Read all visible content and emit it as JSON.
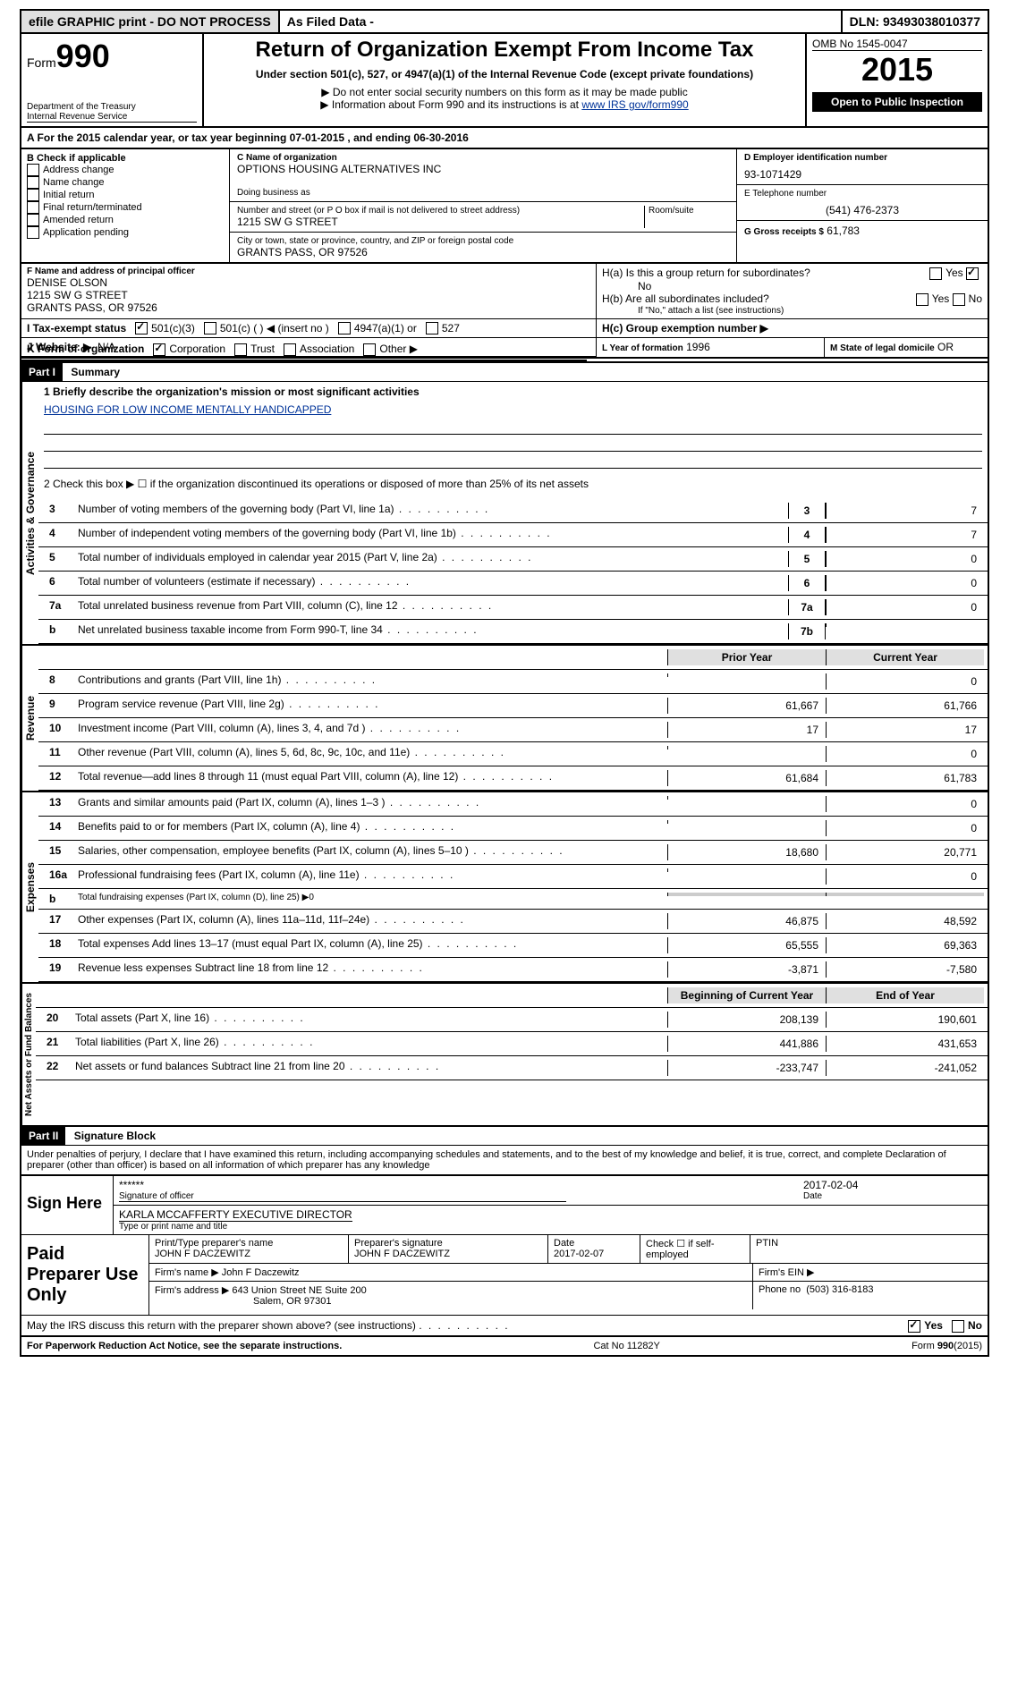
{
  "topbar": {
    "efile": "efile GRAPHIC print - DO NOT PROCESS",
    "asfiled": "As Filed Data -",
    "dln_label": "DLN:",
    "dln": "93493038010377"
  },
  "header": {
    "form_prefix": "Form",
    "form_num": "990",
    "dept": "Department of the Treasury",
    "irs": "Internal Revenue Service",
    "title": "Return of Organization Exempt From Income Tax",
    "subtitle": "Under section 501(c), 527, or 4947(a)(1) of the Internal Revenue Code (except private foundations)",
    "note1": "▶ Do not enter social security numbers on this form as it may be made public",
    "note2_prefix": "▶ Information about Form 990 and its instructions is at ",
    "note2_link": "www IRS gov/form990",
    "omb": "OMB No 1545-0047",
    "year": "2015",
    "open": "Open to Public Inspection"
  },
  "sectionA": {
    "text_a": "A  For the 2015 calendar year, or tax year beginning ",
    "begin": "07-01-2015",
    "mid": " , and ending ",
    "end": "06-30-2016"
  },
  "sectionB": {
    "label": "B  Check if applicable",
    "items": [
      "Address change",
      "Name change",
      "Initial return",
      "Final return/terminated",
      "Amended return",
      "Application pending"
    ]
  },
  "sectionC": {
    "label_name": "C Name of organization",
    "org_name": "OPTIONS HOUSING ALTERNATIVES INC",
    "dba_label": "Doing business as",
    "dba": "",
    "addr_label": "Number and street (or P O box if mail is not delivered to street address)",
    "room_label": "Room/suite",
    "addr": "1215 SW G STREET",
    "city_label": "City or town, state or province, country, and ZIP or foreign postal code",
    "city": "GRANTS PASS, OR  97526"
  },
  "sectionD": {
    "label": "D Employer identification number",
    "value": "93-1071429"
  },
  "sectionE": {
    "label": "E Telephone number",
    "value": "(541) 476-2373"
  },
  "sectionG": {
    "label": "G Gross receipts $",
    "value": "61,783"
  },
  "sectionF": {
    "label": "F  Name and address of principal officer",
    "name": "DENISE OLSON",
    "addr": "1215 SW G STREET",
    "city": "GRANTS PASS, OR  97526"
  },
  "sectionH": {
    "ha_label": "H(a)  Is this a group return for subordinates?",
    "ha_no": "No",
    "hb_label": "H(b)  Are all subordinates included?",
    "hb_note": "If \"No,\" attach a list  (see instructions)",
    "hc_label": "H(c)  Group exemption number ▶"
  },
  "sectionI": {
    "label": "I  Tax-exempt status",
    "opt1": "501(c)(3)",
    "opt2": "501(c) (  ) ◀ (insert no )",
    "opt3": "4947(a)(1) or",
    "opt4": "527"
  },
  "sectionJ": {
    "label": "J  Website: ▶",
    "value": "N/A"
  },
  "sectionK": {
    "label": "K Form of organization",
    "opts": [
      "Corporation",
      "Trust",
      "Association",
      "Other ▶"
    ]
  },
  "sectionL": {
    "label": "L Year of formation",
    "value": "1996"
  },
  "sectionM": {
    "label": "M State of legal domicile",
    "value": "OR"
  },
  "partI": {
    "tag": "Part I",
    "title": "Summary",
    "line1_label": "1 Briefly describe the organization's mission or most significant activities",
    "mission": "HOUSING FOR LOW INCOME MENTALLY HANDICAPPED",
    "line2": "2  Check this box ▶ ☐ if the organization discontinued its operations or disposed of more than 25% of its net assets",
    "vlabel_gov": "Activities & Governance",
    "vlabel_rev": "Revenue",
    "vlabel_exp": "Expenses",
    "vlabel_net": "Net Assets or Fund Balances",
    "prior_header": "Prior Year",
    "current_header": "Current Year",
    "begin_header": "Beginning of Current Year",
    "end_header": "End of Year",
    "lines_gov": [
      {
        "n": "3",
        "t": "Number of voting members of the governing body (Part VI, line 1a)",
        "box": "3",
        "v": "7"
      },
      {
        "n": "4",
        "t": "Number of independent voting members of the governing body (Part VI, line 1b)",
        "box": "4",
        "v": "7"
      },
      {
        "n": "5",
        "t": "Total number of individuals employed in calendar year 2015 (Part V, line 2a)",
        "box": "5",
        "v": "0"
      },
      {
        "n": "6",
        "t": "Total number of volunteers (estimate if necessary)",
        "box": "6",
        "v": "0"
      },
      {
        "n": "7a",
        "t": "Total unrelated business revenue from Part VIII, column (C), line 12",
        "box": "7a",
        "v": "0"
      },
      {
        "n": "b",
        "t": "Net unrelated business taxable income from Form 990-T, line 34",
        "box": "7b",
        "v": ""
      }
    ],
    "lines_rev": [
      {
        "n": "8",
        "t": "Contributions and grants (Part VIII, line 1h)",
        "p": "",
        "c": "0"
      },
      {
        "n": "9",
        "t": "Program service revenue (Part VIII, line 2g)",
        "p": "61,667",
        "c": "61,766"
      },
      {
        "n": "10",
        "t": "Investment income (Part VIII, column (A), lines 3, 4, and 7d )",
        "p": "17",
        "c": "17"
      },
      {
        "n": "11",
        "t": "Other revenue (Part VIII, column (A), lines 5, 6d, 8c, 9c, 10c, and 11e)",
        "p": "",
        "c": "0"
      },
      {
        "n": "12",
        "t": "Total revenue—add lines 8 through 11 (must equal Part VIII, column (A), line 12)",
        "p": "61,684",
        "c": "61,783"
      }
    ],
    "lines_exp": [
      {
        "n": "13",
        "t": "Grants and similar amounts paid (Part IX, column (A), lines 1–3 )",
        "p": "",
        "c": "0"
      },
      {
        "n": "14",
        "t": "Benefits paid to or for members (Part IX, column (A), line 4)",
        "p": "",
        "c": "0"
      },
      {
        "n": "15",
        "t": "Salaries, other compensation, employee benefits (Part IX, column (A), lines 5–10 )",
        "p": "18,680",
        "c": "20,771"
      },
      {
        "n": "16a",
        "t": "Professional fundraising fees (Part IX, column (A), line 11e)",
        "p": "",
        "c": "0"
      },
      {
        "n": "b",
        "t": "Total fundraising expenses (Part IX, column (D), line 25) ▶0",
        "p": null,
        "c": null
      },
      {
        "n": "17",
        "t": "Other expenses (Part IX, column (A), lines 11a–11d, 11f–24e)",
        "p": "46,875",
        "c": "48,592"
      },
      {
        "n": "18",
        "t": "Total expenses Add lines 13–17 (must equal Part IX, column (A), line 25)",
        "p": "65,555",
        "c": "69,363"
      },
      {
        "n": "19",
        "t": "Revenue less expenses Subtract line 18 from line 12",
        "p": "-3,871",
        "c": "-7,580"
      }
    ],
    "lines_net": [
      {
        "n": "20",
        "t": "Total assets (Part X, line 16)",
        "p": "208,139",
        "c": "190,601"
      },
      {
        "n": "21",
        "t": "Total liabilities (Part X, line 26)",
        "p": "441,886",
        "c": "431,653"
      },
      {
        "n": "22",
        "t": "Net assets or fund balances Subtract line 21 from line 20",
        "p": "-233,747",
        "c": "-241,052"
      }
    ]
  },
  "partII": {
    "tag": "Part II",
    "title": "Signature Block",
    "perjury": "Under penalties of perjury, I declare that I have examined this return, including accompanying schedules and statements, and to the best of my knowledge and belief, it is true, correct, and complete Declaration of preparer (other than officer) is based on all information of which preparer has any knowledge",
    "sign_here": "Sign Here",
    "sig_mask": "******",
    "sig_label": "Signature of officer",
    "sig_date": "2017-02-04",
    "date_label": "Date",
    "officer_name": "KARLA MCCAFFERTY EXECUTIVE DIRECTOR",
    "officer_label": "Type or print name and title",
    "paid_label": "Paid Preparer Use Only",
    "prep_name_label": "Print/Type preparer's name",
    "prep_name": "JOHN F DACZEWITZ",
    "prep_sig_label": "Preparer's signature",
    "prep_sig": "JOHN F DACZEWITZ",
    "prep_date_label": "Date",
    "prep_date": "2017-02-07",
    "self_emp": "Check ☐ if self-employed",
    "ptin": "PTIN",
    "firm_name_label": "Firm's name    ▶",
    "firm_name": "John F Daczewitz",
    "firm_ein_label": "Firm's EIN ▶",
    "firm_addr_label": "Firm's address ▶",
    "firm_addr1": "643 Union Street NE Suite 200",
    "firm_addr2": "Salem, OR  97301",
    "firm_phone_label": "Phone no",
    "firm_phone": "(503) 316-8183",
    "may_irs": "May the IRS discuss this return with the preparer shown above? (see instructions)",
    "yes": "Yes",
    "no": "No"
  },
  "footer": {
    "paperwork": "For Paperwork Reduction Act Notice, see the separate instructions.",
    "cat": "Cat No 11282Y",
    "form": "Form 990 (2015)"
  }
}
